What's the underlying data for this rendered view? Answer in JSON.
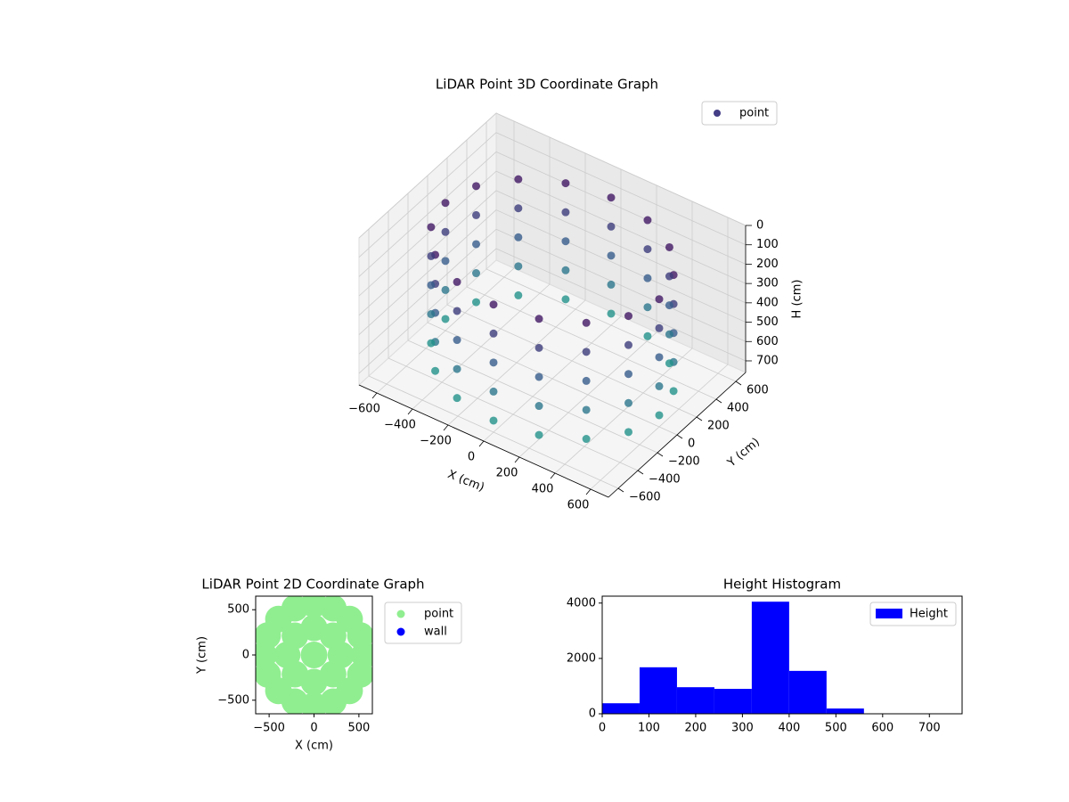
{
  "chart_data": [
    {
      "type": "scatter3d",
      "title": "LiDAR Point 3D Coordinate Graph",
      "xlabel": "X (cm)",
      "ylabel": "Y (cm)",
      "zlabel": "H (cm)",
      "name": "point",
      "color": "#433e85",
      "cmap": "viridis",
      "legend": "upper right",
      "grid": true,
      "x": [
        600,
        554,
        424,
        230,
        0,
        -230,
        -424,
        -554,
        -600,
        -554,
        -424,
        -230,
        0,
        230,
        424,
        554,
        600,
        554,
        424,
        230,
        0,
        -230,
        -424,
        -554,
        -600,
        -554,
        -424,
        -230,
        0,
        230,
        424,
        554,
        600,
        554,
        424,
        230,
        0,
        -230,
        -424,
        -554,
        -600,
        -554,
        -424,
        -230,
        0,
        230,
        424,
        554,
        600,
        554,
        424,
        230,
        0,
        -230,
        -424,
        -554,
        -600,
        -554,
        -424,
        -230,
        0,
        230,
        424,
        554,
        600,
        554,
        424,
        230,
        0,
        -230,
        -424,
        -554,
        -600,
        -554,
        -424,
        -230,
        0,
        230,
        424,
        554
      ],
      "y": [
        0,
        230,
        424,
        554,
        600,
        554,
        424,
        230,
        0,
        -230,
        -424,
        -554,
        -600,
        -554,
        -424,
        -230,
        0,
        230,
        424,
        554,
        600,
        554,
        424,
        230,
        0,
        -230,
        -424,
        -554,
        -600,
        -554,
        -424,
        -230,
        0,
        230,
        424,
        554,
        600,
        554,
        424,
        230,
        0,
        -230,
        -424,
        -554,
        -600,
        -554,
        -424,
        -230,
        0,
        230,
        424,
        554,
        600,
        554,
        424,
        230,
        0,
        -230,
        -424,
        -554,
        -600,
        -554,
        -424,
        -230,
        0,
        230,
        424,
        554,
        600,
        554,
        424,
        230,
        0,
        -230,
        -424,
        -554,
        -600,
        -554,
        -424,
        -230
      ],
      "z": [
        100,
        100,
        100,
        100,
        100,
        100,
        100,
        100,
        100,
        100,
        100,
        100,
        100,
        100,
        100,
        100,
        250,
        250,
        250,
        250,
        250,
        250,
        250,
        250,
        250,
        250,
        250,
        250,
        250,
        250,
        250,
        250,
        400,
        400,
        400,
        400,
        400,
        400,
        400,
        400,
        400,
        400,
        400,
        400,
        400,
        400,
        400,
        400,
        550,
        550,
        550,
        550,
        550,
        550,
        550,
        550,
        550,
        550,
        550,
        550,
        550,
        550,
        550,
        550,
        700,
        700,
        700,
        700,
        700,
        700,
        700,
        700,
        700,
        700,
        700,
        700,
        700,
        700,
        700,
        700
      ],
      "xlim": [
        -700,
        700
      ],
      "ylim": [
        -700,
        700
      ],
      "zlim": [
        0,
        760
      ],
      "z_inverted": true,
      "xticks": [
        {
          "value": -600,
          "label": "−600"
        },
        {
          "value": -400,
          "label": "−400"
        },
        {
          "value": -200,
          "label": "−200"
        },
        0,
        200,
        400,
        600
      ],
      "yticks": [
        {
          "value": -600,
          "label": "−600"
        },
        {
          "value": -400,
          "label": "−400"
        },
        {
          "value": -200,
          "label": "−200"
        },
        0,
        200,
        400,
        600
      ],
      "zticks": [
        0,
        100,
        200,
        300,
        400,
        500,
        600,
        700
      ]
    },
    {
      "type": "scatter",
      "title": "LiDAR Point 2D Coordinate Graph",
      "xlabel": "X (cm)",
      "ylabel": "Y (cm)",
      "legend": "outside right",
      "series": [
        {
          "name": "point",
          "color": "#90ee90",
          "x": [
            0,
            300,
            212,
            0,
            -212,
            -300,
            -212,
            0,
            212,
            560,
            517,
            396,
            214,
            0,
            -214,
            -396,
            -517,
            -560,
            -517,
            -396,
            -214,
            0,
            214,
            396,
            517
          ],
          "y": [
            0,
            0,
            212,
            300,
            212,
            0,
            -212,
            -300,
            -212,
            0,
            214,
            396,
            517,
            560,
            517,
            396,
            214,
            0,
            -214,
            -396,
            -517,
            -560,
            -517,
            -396,
            -214
          ]
        },
        {
          "name": "wall",
          "color": "#0000ff",
          "x": [],
          "y": []
        }
      ],
      "xlim": [
        -650,
        650
      ],
      "ylim": [
        -650,
        650
      ],
      "xticks": [
        {
          "value": -500,
          "label": "−500"
        },
        0,
        500
      ],
      "yticks": [
        {
          "value": -500,
          "label": "−500"
        },
        0,
        500
      ]
    },
    {
      "type": "histogram",
      "title": "Height Histogram",
      "name": "Height",
      "color": "#0000ff",
      "legend": "upper right",
      "bins": [
        0,
        80,
        160,
        240,
        320,
        400,
        480,
        560,
        640,
        720
      ],
      "values": [
        380,
        1680,
        960,
        900,
        4050,
        1550,
        190,
        10,
        10
      ],
      "xlim": [
        0,
        770
      ],
      "ylim": [
        0,
        4250
      ],
      "xticks": [
        0,
        100,
        200,
        300,
        400,
        500,
        600,
        700
      ],
      "yticks": [
        0,
        2000,
        4000
      ]
    }
  ]
}
